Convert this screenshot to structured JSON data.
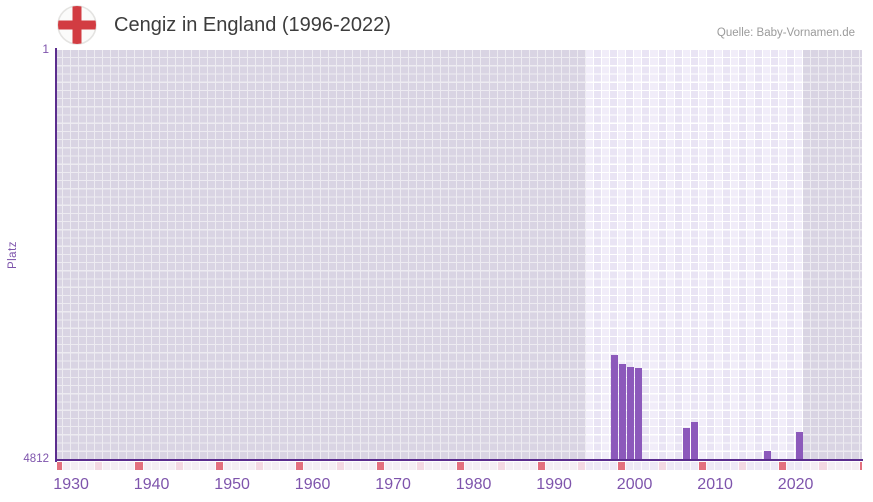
{
  "header": {
    "title": "Cengiz in England (1996-2022)",
    "source": "Quelle: Baby-Vornamen.de"
  },
  "chart_data": {
    "type": "bar",
    "title": "Cengiz in England (1996-2022)",
    "xlabel": "",
    "ylabel": "Platz",
    "y_axis": {
      "top_tick": "1",
      "bottom_tick": "4812",
      "min": 1,
      "max": 4812,
      "inverted": true
    },
    "x_range_years": [
      1928,
      2028
    ],
    "x_tick_years": [
      1930,
      1940,
      1950,
      1960,
      1970,
      1980,
      1990,
      2000,
      2010,
      2020
    ],
    "highlight_band_years": [
      1994,
      2020
    ],
    "decade_marker_rule": {
      "red_year_mod10": 8,
      "pink_year_mod10": 3
    },
    "series": [
      {
        "year": 1997,
        "rank": 3580
      },
      {
        "year": 1998,
        "rank": 3690
      },
      {
        "year": 1999,
        "rank": 3720
      },
      {
        "year": 2000,
        "rank": 3735
      },
      {
        "year": 2006,
        "rank": 4440
      },
      {
        "year": 2007,
        "rank": 4370
      },
      {
        "year": 2016,
        "rank": 4710
      },
      {
        "year": 2020,
        "rank": 4480
      }
    ],
    "grid": true,
    "legend": "none",
    "colors": {
      "bar": "#8c59bb",
      "axis": "#5b2d8e",
      "tick_label": "#7e54ac",
      "grid_cell_outside": "#d9d4e3",
      "grid_gap_outside": "#edebf1",
      "grid_cell_band_even": "#f1edf9",
      "grid_cell_band_odd": "#e9e4f4",
      "strip_default_outside": "#f4eef4",
      "strip_default_band": "#eee9f6",
      "strip_red": "#e3707e",
      "strip_pink": "#f3d8e2",
      "title_text": "#3d3d3d",
      "source_text": "#9b9b9b",
      "flag_red": "#d23c42"
    }
  }
}
